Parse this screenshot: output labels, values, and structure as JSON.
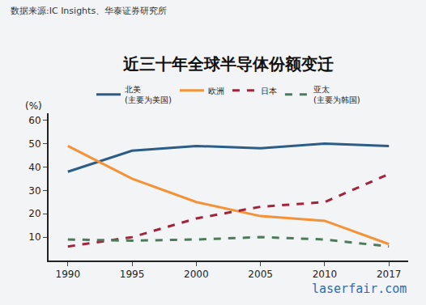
{
  "chart_data": {
    "type": "line",
    "title": "近三十年全球半导体份额变迁",
    "annotations": [
      "数据来源:IC Insights、华泰证券研究所",
      "laserfair.com"
    ],
    "y_label": "(%)",
    "categories": [
      "1990",
      "1995",
      "2000",
      "2005",
      "2010",
      "2017"
    ],
    "series": [
      {
        "name": "北美\n(主要为美国)",
        "color": "#2c5d86",
        "line_style": "solid",
        "values": [
          38,
          47,
          49,
          48,
          50,
          49
        ]
      },
      {
        "name": "欧洲",
        "color": "#f39237",
        "line_style": "solid",
        "values": [
          49,
          35,
          25,
          19,
          17,
          7
        ]
      },
      {
        "name": "日本",
        "color": "#a3223c",
        "line_style": "dash",
        "values": [
          6,
          10,
          18,
          23,
          25,
          37
        ]
      },
      {
        "name": "亚太\n(主要为韩国)",
        "color": "#4d7a5c",
        "line_style": "dash",
        "values": [
          9,
          8.5,
          9,
          10,
          9,
          6
        ]
      }
    ],
    "ylim": [
      0,
      63
    ],
    "yticks": [
      10,
      20,
      30,
      40,
      50,
      60
    ],
    "grid": false,
    "legend": "top"
  }
}
